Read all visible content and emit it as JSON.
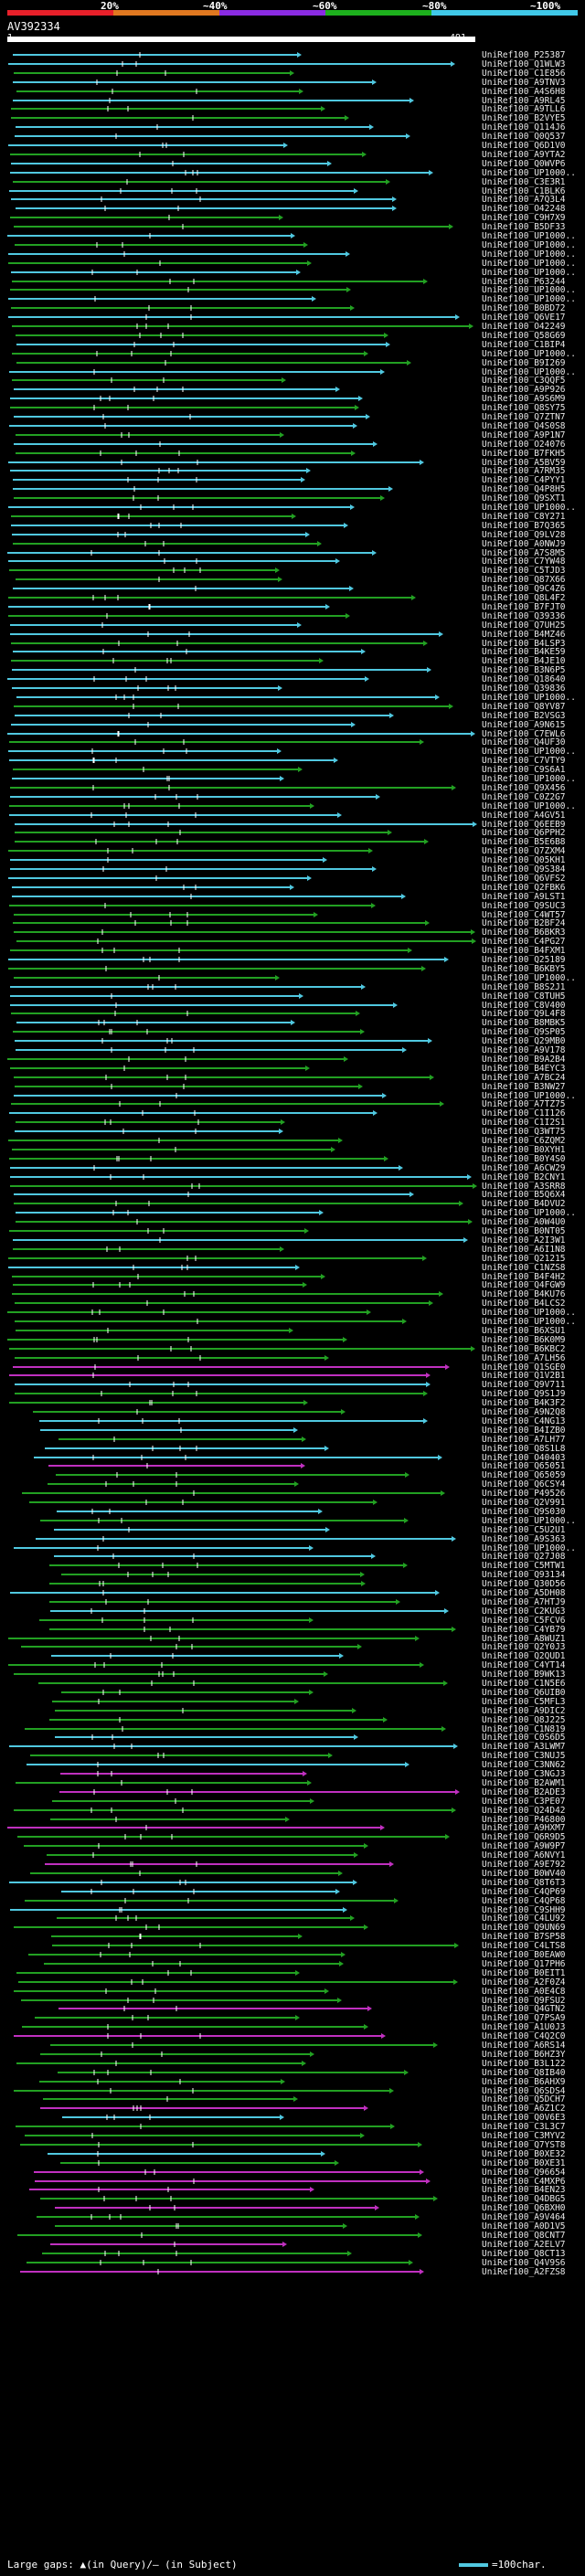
{
  "scale": {
    "ticks": [
      "20%",
      "~40%",
      "~60%",
      "~80%",
      "~100%"
    ],
    "segments": [
      {
        "color": "#e8202a"
      },
      {
        "color": "#e07820"
      },
      {
        "color": "#8a2be2"
      },
      {
        "color": "#1db01d"
      },
      {
        "color": "#40c8e8"
      }
    ]
  },
  "query": {
    "id": "AV392334",
    "start": "1",
    "end": "491"
  },
  "legend": {
    "footer": "Large gaps: ▲(in Query)/— (in Subject)",
    "scale_note": "=100char."
  },
  "colors": {
    "cyan": "#50c8e0",
    "green": "#22a022",
    "magenta": "#c030c0",
    "white": "#ffffff"
  },
  "hits": [
    "UniRef100_P25387",
    "UniRef100_Q1WLW3",
    "UniRef100_C1E856",
    "UniRef100_A9TNV3",
    "UniRef100_A4S6H8",
    "UniRef100_A9RL45",
    "UniRef100_A9TLL6",
    "UniRef100_B2VYE5",
    "UniRef100_Q114J6",
    "UniRef100_Q0Q537",
    "UniRef100_Q6D1V0",
    "UniRef100_A9YTA2",
    "UniRef100_Q0WVP6",
    "UniRef100_UP1000..",
    "UniRef100_C3E3R1",
    "UniRef100_C1BLK6",
    "UniRef100_A7Q3L4",
    "UniRef100_O42248",
    "UniRef100_C9H7X9",
    "UniRef100_B5DF33",
    "UniRef100_UP1000..",
    "UniRef100_UP1000..",
    "UniRef100_UP1000..",
    "UniRef100_UP1000..",
    "UniRef100_UP1000..",
    "UniRef100_P63244",
    "UniRef100_UP1000..",
    "UniRef100_UP1000..",
    "UniRef100_B0BD72",
    "UniRef100_Q6VE17",
    "UniRef100_O42249",
    "UniRef100_Q58G69",
    "UniRef100_C1BIP4",
    "UniRef100_UP1000..",
    "UniRef100_B9I269",
    "UniRef100_UP1000..",
    "UniRef100_C3QQF5",
    "UniRef100_A9P926",
    "UniRef100_A9S6M9",
    "UniRef100_Q8SY75",
    "UniRef100_Q7ZTN7",
    "UniRef100_Q4S0S8",
    "UniRef100_A9P1N7",
    "UniRef100_O24076",
    "UniRef100_B7FKH5",
    "UniRef100_A5BV59",
    "UniRef100_A7RM35",
    "UniRef100_C4PYY1",
    "UniRef100_Q4P8H5",
    "UniRef100_Q9SXT1",
    "UniRef100_UP1000..",
    "UniRef100_C8Y271",
    "UniRef100_B7Q365",
    "UniRef100_Q9LV28",
    "UniRef100_A0NWJ9",
    "UniRef100_A7S8M5",
    "UniRef100_C7YW48",
    "UniRef100_C5TJD3",
    "UniRef100_Q87X66",
    "UniRef100_Q9C4Z6",
    "UniRef100_Q8L4F2",
    "UniRef100_B7FJT0",
    "UniRef100_Q39336",
    "UniRef100_Q7UH25",
    "UniRef100_B4MZ46",
    "UniRef100_B4LSP3",
    "UniRef100_B4KE59",
    "UniRef100_B4JE10",
    "UniRef100_B3N6P5",
    "UniRef100_Q18640",
    "UniRef100_Q39836",
    "UniRef100_UP1000..",
    "UniRef100_Q8YV87",
    "UniRef100_B2VSG3",
    "UniRef100_A9N615",
    "UniRef100_C7EWL6",
    "UniRef100_Q4UF30",
    "UniRef100_UP1000..",
    "UniRef100_C7VTY9",
    "UniRef100_C9S6A1",
    "UniRef100_UP1000..",
    "UniRef100_Q9X456",
    "UniRef100_C0Z2G7",
    "UniRef100_UP1000..",
    "UniRef100_A4GV51",
    "UniRef100_Q6EEB9",
    "UniRef100_Q6PPH2",
    "UniRef100_B5E6B8",
    "UniRef100_Q7ZXM4",
    "UniRef100_Q05KH1",
    "UniRef100_Q9S384",
    "UniRef100_Q6VFS2",
    "UniRef100_Q2FBK6",
    "UniRef100_A9LST1",
    "UniRef100_Q9SUC3",
    "UniRef100_C4WT57",
    "UniRef100_B2BF24",
    "UniRef100_B6BKR3",
    "UniRef100_C4PG27",
    "UniRef100_B4FXM1",
    "UniRef100_Q25189",
    "UniRef100_B6KBY5",
    "UniRef100_UP1000..",
    "UniRef100_B8S2J1",
    "UniRef100_C8TUH5",
    "UniRef100_C8V400",
    "UniRef100_Q9L4F8",
    "UniRef100_B8MBK5",
    "UniRef100_Q9SP05",
    "UniRef100_Q29MB0",
    "UniRef100_A9V178",
    "UniRef100_B9A2B4",
    "UniRef100_B4EYC3",
    "UniRef100_A7BC24",
    "UniRef100_B3NW27",
    "UniRef100_UP1000..",
    "UniRef100_A7TZ75",
    "UniRef100_C1I126",
    "UniRef100_C1I2S1",
    "UniRef100_Q3WT75",
    "UniRef100_C6ZQM2",
    "UniRef100_B0XYH1",
    "UniRef100_B0Y4S0",
    "UniRef100_A6CW29",
    "UniRef100_B2CNY1",
    "UniRef100_A3SRR8",
    "UniRef100_B5Q6X4",
    "UniRef100_B4DVU2",
    "UniRef100_UP1000..",
    "UniRef100_A0W4U0",
    "UniRef100_B0NT05",
    "UniRef100_A2I3W1",
    "UniRef100_A6I1N8",
    "UniRef100_Q21215",
    "UniRef100_C1NZS8",
    "UniRef100_B4F4H2",
    "UniRef100_Q4FGW9",
    "UniRef100_B4KU76",
    "UniRef100_B4LCS2",
    "UniRef100_UP1000..",
    "UniRef100_UP1000..",
    "UniRef100_B6XSU1",
    "UniRef100_B6K0M9",
    "UniRef100_B6KBC2",
    "UniRef100_A7LH56",
    "UniRef100_Q1SGE0",
    "UniRef100_Q1V2B1",
    "UniRef100_Q9V711",
    "UniRef100_Q9S1J9",
    "UniRef100_B4K3F2",
    "UniRef100_A9N2Q8",
    "UniRef100_C4NG13",
    "UniRef100_B4IZB0",
    "UniRef100_A7LH77",
    "UniRef100_Q8S1L8",
    "UniRef100_O40403",
    "UniRef100_Q65051",
    "UniRef100_Q65059",
    "UniRef100_Q6CSY4",
    "UniRef100_P49526",
    "UniRef100_Q2V991",
    "UniRef100_Q9S030",
    "UniRef100_UP1000..",
    "UniRef100_C5U2U1",
    "UniRef100_A9S363",
    "UniRef100_UP1000..",
    "UniRef100_Q27J08",
    "UniRef100_C5MTW1",
    "UniRef100_Q93134",
    "UniRef100_Q30D56",
    "UniRef100_A5DH08",
    "UniRef100_A7HTJ9",
    "UniRef100_C2KUG3",
    "UniRef100_C5FCV6",
    "UniRef100_C4YB79",
    "UniRef100_A8WUZ1",
    "UniRef100_Q2Y0J3",
    "UniRef100_Q2QUD1",
    "UniRef100_C4YT14",
    "UniRef100_B9WK13",
    "UniRef100_C1N5E6",
    "UniRef100_Q6UIB0",
    "UniRef100_C5MFL3",
    "UniRef100_A9DIC2",
    "UniRef100_Q8J225",
    "UniRef100_C1N819",
    "UniRef100_C0S6D5",
    "UniRef100_A3LWM7",
    "UniRef100_C3NUJ5",
    "UniRef100_C3NN62",
    "UniRef100_C3NGJ3",
    "UniRef100_B2AWM1",
    "UniRef100_B2ADE3",
    "UniRef100_C3PE07",
    "UniRef100_Q24D42",
    "UniRef100_P46800",
    "UniRef100_A9HXM7",
    "UniRef100_Q6R9D5",
    "UniRef100_A9W9P7",
    "UniRef100_A6NVY1",
    "UniRef100_A9E792",
    "UniRef100_B0WV40",
    "UniRef100_Q8T6T3",
    "UniRef100_C4QP69",
    "UniRef100_C4QP68",
    "UniRef100_C9SHH9",
    "UniRef100_C4LU92",
    "UniRef100_Q9UN69",
    "UniRef100_B7SP58",
    "UniRef100_C4LTS8",
    "UniRef100_B0EAW0",
    "UniRef100_Q17PH6",
    "UniRef100_B0EIT1",
    "UniRef100_A2F0Z4",
    "UniRef100_A0E4C8",
    "UniRef100_Q9FSU2",
    "UniRef100_Q4GTN2",
    "UniRef100_Q7PSA9",
    "UniRef100_A1U0J3",
    "UniRef100_C4Q2C0",
    "UniRef100_A6RS14",
    "UniRef100_B6HZ3Y",
    "UniRef100_B3L122",
    "UniRef100_Q8IB40",
    "UniRef100_B6AHX9",
    "UniRef100_Q6SDS4",
    "UniRef100_Q5DCH7",
    "UniRef100_A6Z1C2",
    "UniRef100_Q0V6E3",
    "UniRef100_C3L3C7",
    "UniRef100_C3MYV2",
    "UniRef100_Q7YST8",
    "UniRef100_B0XE32",
    "UniRef100_B0XE31",
    "UniRef100_Q96654",
    "UniRef100_C4MXP6",
    "UniRef100_B4EN23",
    "UniRef100_Q4DBG5",
    "UniRef100_Q6BXH0",
    "UniRef100_A9V464",
    "UniRef100_A0D1V5",
    "UniRef100_Q8CNT7",
    "UniRef100_A2ELV7",
    "UniRef100_Q8CT13",
    "UniRef100_Q4V9S6",
    "UniRef100_A2FZS8"
  ]
}
